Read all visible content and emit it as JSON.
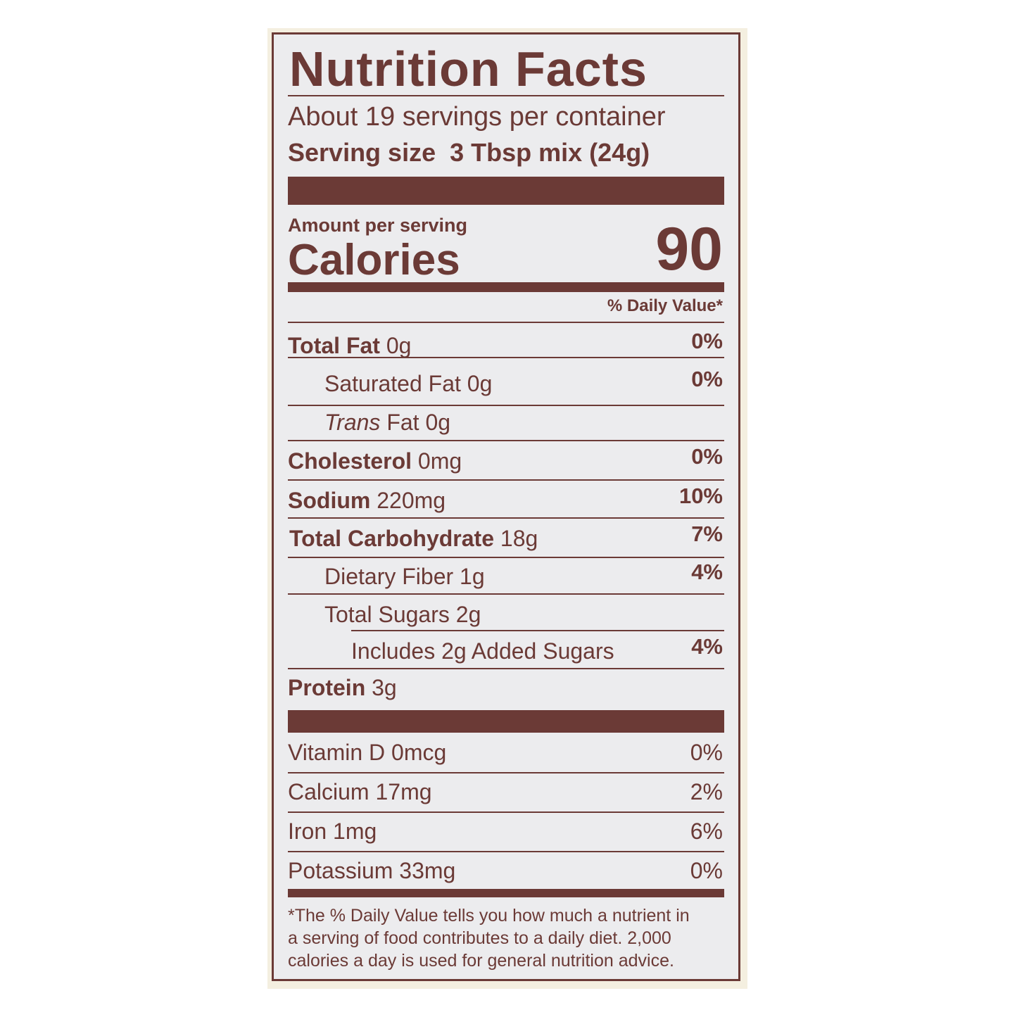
{
  "title": "Nutrition Facts",
  "servings": "About 19 servings per container",
  "serving_size_label": "Serving size",
  "serving_size_value": "3 Tbsp mix (24g)",
  "amount_per_serving": "Amount per serving",
  "calories_label": "Calories",
  "calories_value": "90",
  "dv_header": "% Daily Value*",
  "nutrients": [
    {
      "name": "Total Fat",
      "amount": "0g",
      "dv": "0%"
    },
    {
      "name": "Saturated Fat",
      "amount": "0g",
      "dv": "0%"
    },
    {
      "name": "Trans",
      "name2": "Fat",
      "amount": "0g",
      "dv": ""
    },
    {
      "name": "Cholesterol",
      "amount": "0mg",
      "dv": "0%"
    },
    {
      "name": "Sodium",
      "amount": "220mg",
      "dv": "10%"
    },
    {
      "name": "Total Carbohydrate",
      "amount": "18g",
      "dv": "7%"
    },
    {
      "name": "Dietary Fiber",
      "amount": "1g",
      "dv": "4%"
    },
    {
      "name": "Total Sugars",
      "amount": "2g",
      "dv": ""
    },
    {
      "name": "Includes 2g Added Sugars",
      "amount": "",
      "dv": "4%"
    },
    {
      "name": "Protein",
      "amount": "3g",
      "dv": ""
    }
  ],
  "vitamins": [
    {
      "text": "Vitamin D 0mcg",
      "dv": "0%"
    },
    {
      "text": "Calcium 17mg",
      "dv": "2%"
    },
    {
      "text": "Iron 1mg",
      "dv": "6%"
    },
    {
      "text": "Potassium 33mg",
      "dv": "0%"
    }
  ],
  "footnote": [
    "*The % Daily Value tells you how much a nutrient in",
    "a serving of food contributes to a daily diet. 2,000",
    "calories a day is used for general nutrition advice."
  ],
  "colors": {
    "ink": "#6b3a36",
    "label_bg": "#ececee",
    "frame": "#f4efe0"
  }
}
